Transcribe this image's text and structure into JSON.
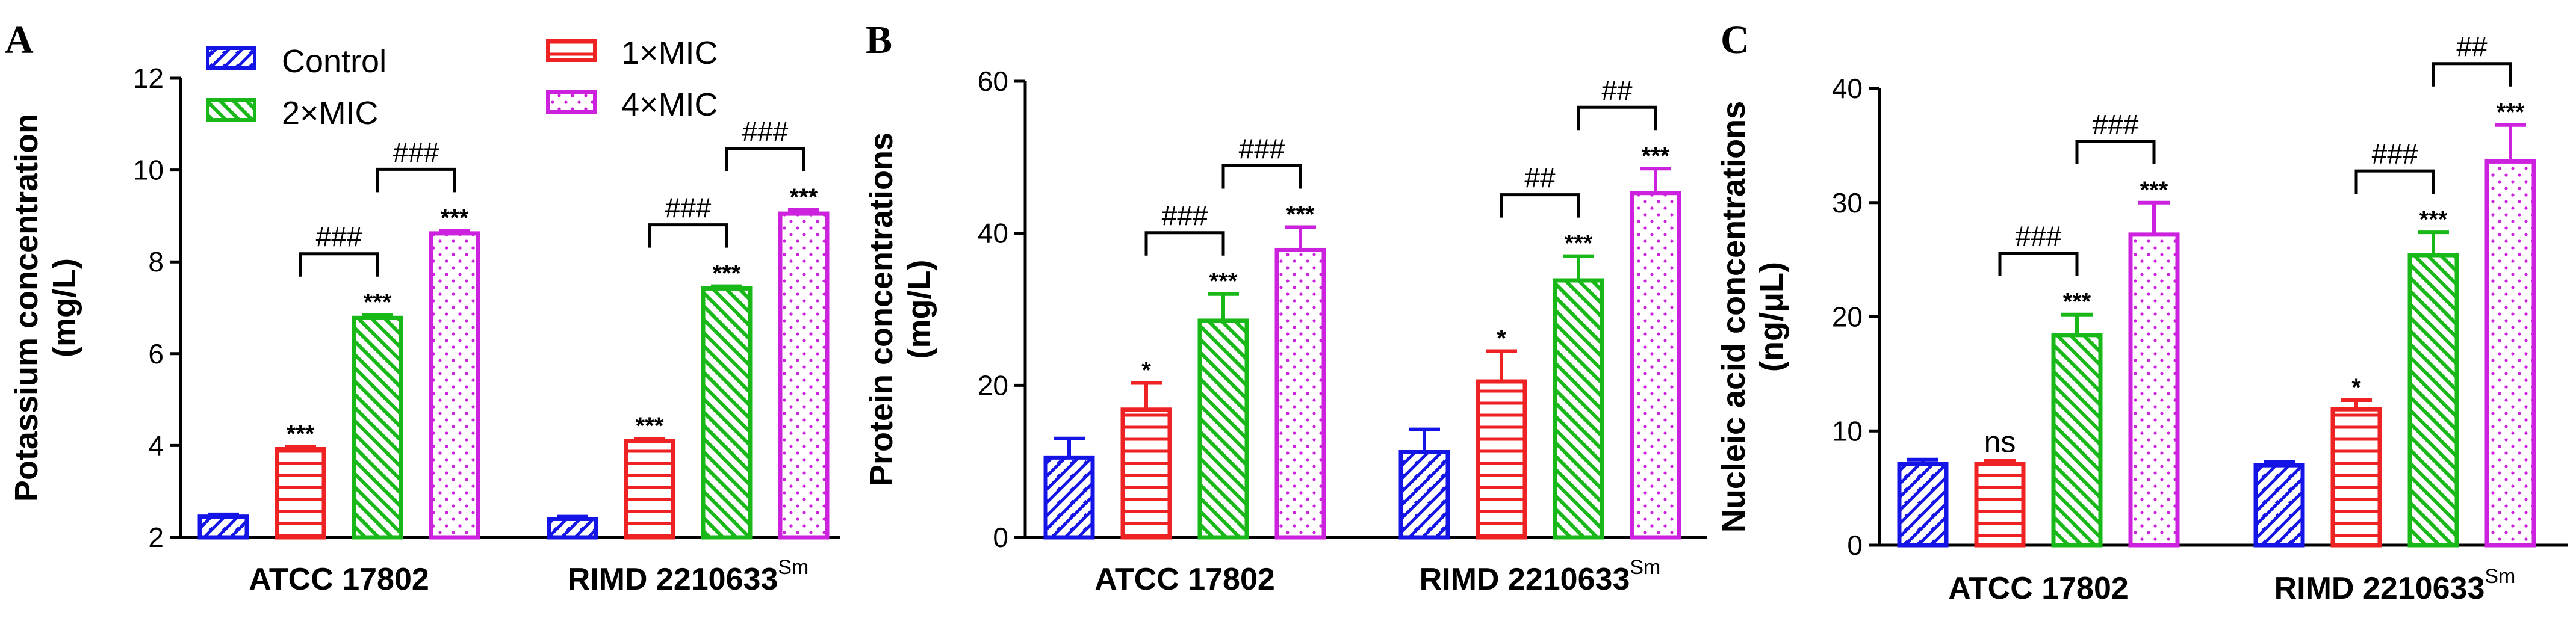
{
  "colors": {
    "control": "#1414e6",
    "mic1": "#ee2222",
    "mic2": "#17b817",
    "mic4": "#cc22dd"
  },
  "legend": [
    "Control",
    "2×MIC",
    "1×MIC",
    "4×MIC"
  ],
  "chart_data": [
    {
      "type": "bar",
      "panel": "A",
      "ylabel_lines": [
        "Potassium concentration",
        "(mg/L)"
      ],
      "ylim": [
        2,
        12
      ],
      "yticks": [
        "2",
        "4",
        "6",
        "8",
        "10",
        "12"
      ],
      "categories": [
        "ATCC 17802",
        "RIMD 2210633"
      ],
      "category_superscripts": [
        "",
        "Sm"
      ],
      "series": [
        {
          "name": "Control",
          "values": [
            2.45,
            2.4
          ],
          "errors": [
            0.05,
            0.05
          ],
          "marks": [
            "",
            ""
          ]
        },
        {
          "name": "1×MIC",
          "values": [
            3.92,
            4.1
          ],
          "errors": [
            0.05,
            0.05
          ],
          "marks": [
            "***",
            "***"
          ]
        },
        {
          "name": "2×MIC",
          "values": [
            6.78,
            7.42
          ],
          "errors": [
            0.06,
            0.05
          ],
          "marks": [
            "***",
            "***"
          ]
        },
        {
          "name": "4×MIC",
          "values": [
            8.62,
            9.05
          ],
          "errors": [
            0.06,
            0.08
          ],
          "marks": [
            "***",
            "***"
          ]
        }
      ],
      "comparisons": [
        {
          "group": 0,
          "from": 1,
          "to": 2,
          "label": "###"
        },
        {
          "group": 0,
          "from": 2,
          "to": 3,
          "label": "###"
        },
        {
          "group": 1,
          "from": 1,
          "to": 2,
          "label": "###"
        },
        {
          "group": 1,
          "from": 2,
          "to": 3,
          "label": "###"
        }
      ]
    },
    {
      "type": "bar",
      "panel": "B",
      "ylabel_lines": [
        "Protein concentrations",
        "(mg/L)"
      ],
      "ylim": [
        0,
        60
      ],
      "yticks": [
        "0",
        "20",
        "40",
        "60"
      ],
      "categories": [
        "ATCC 17802",
        "RIMD 2210633"
      ],
      "category_superscripts": [
        "",
        "Sm"
      ],
      "series": [
        {
          "name": "Control",
          "values": [
            10.5,
            11.2
          ],
          "errors": [
            2.5,
            3.0
          ],
          "marks": [
            "",
            ""
          ]
        },
        {
          "name": "1×MIC",
          "values": [
            16.8,
            20.5
          ],
          "errors": [
            3.5,
            4.0
          ],
          "marks": [
            "*",
            "*"
          ]
        },
        {
          "name": "2×MIC",
          "values": [
            28.5,
            33.8
          ],
          "errors": [
            3.5,
            3.2
          ],
          "marks": [
            "***",
            "***"
          ]
        },
        {
          "name": "4×MIC",
          "values": [
            37.8,
            45.3
          ],
          "errors": [
            3.0,
            3.2
          ],
          "marks": [
            "***",
            "***"
          ]
        }
      ],
      "comparisons": [
        {
          "group": 0,
          "from": 1,
          "to": 2,
          "label": "###"
        },
        {
          "group": 0,
          "from": 2,
          "to": 3,
          "label": "###"
        },
        {
          "group": 1,
          "from": 1,
          "to": 2,
          "label": "##"
        },
        {
          "group": 1,
          "from": 2,
          "to": 3,
          "label": "##"
        }
      ]
    },
    {
      "type": "bar",
      "panel": "C",
      "ylabel_lines": [
        "Nucleic acid concentrations",
        "(ng/μL)"
      ],
      "ylim": [
        0,
        40
      ],
      "yticks": [
        "0",
        "10",
        "20",
        "30",
        "40"
      ],
      "categories": [
        "ATCC 17802",
        "RIMD 2210633"
      ],
      "category_superscripts": [
        "",
        "Sm"
      ],
      "series": [
        {
          "name": "Control",
          "values": [
            7.1,
            7.0
          ],
          "errors": [
            0.4,
            0.3
          ],
          "marks": [
            "",
            ""
          ]
        },
        {
          "name": "1×MIC",
          "values": [
            7.1,
            11.9
          ],
          "errors": [
            0.3,
            0.8
          ],
          "marks": [
            "ns",
            "*"
          ]
        },
        {
          "name": "2×MIC",
          "values": [
            18.4,
            25.4
          ],
          "errors": [
            1.8,
            2.0
          ],
          "marks": [
            "***",
            "***"
          ]
        },
        {
          "name": "4×MIC",
          "values": [
            27.2,
            33.6
          ],
          "errors": [
            2.8,
            3.2
          ],
          "marks": [
            "***",
            "***"
          ]
        }
      ],
      "comparisons": [
        {
          "group": 0,
          "from": 1,
          "to": 2,
          "label": "###"
        },
        {
          "group": 0,
          "from": 2,
          "to": 3,
          "label": "###"
        },
        {
          "group": 1,
          "from": 1,
          "to": 2,
          "label": "###"
        },
        {
          "group": 1,
          "from": 2,
          "to": 3,
          "label": "##"
        }
      ]
    }
  ]
}
